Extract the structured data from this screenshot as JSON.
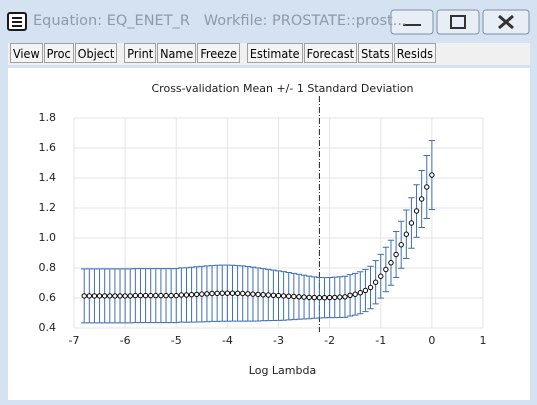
{
  "window": {
    "title": "Equation: EQ_ENET_R   Workfile: PROSTATE::prost...",
    "toolbar": [
      [
        "View",
        "Proc",
        "Object"
      ],
      [
        "Print",
        "Name",
        "Freeze"
      ],
      [
        "Estimate",
        "Forecast",
        "Stats",
        "Resids"
      ]
    ]
  },
  "chart_data": {
    "type": "errorbar",
    "title": "Cross-validation Mean +/- 1 Standard Deviation",
    "x_label": "Log Lambda",
    "x": [
      -6.8,
      -6.7,
      -6.6,
      -6.5,
      -6.4,
      -6.3,
      -6.2,
      -6.1,
      -6.0,
      -5.9,
      -5.8,
      -5.7,
      -5.6,
      -5.5,
      -5.4,
      -5.3,
      -5.2,
      -5.1,
      -5.0,
      -4.9,
      -4.8,
      -4.7,
      -4.6,
      -4.5,
      -4.4,
      -4.3,
      -4.2,
      -4.1,
      -4.0,
      -3.9,
      -3.8,
      -3.7,
      -3.6,
      -3.5,
      -3.4,
      -3.3,
      -3.2,
      -3.1,
      -3.0,
      -2.9,
      -2.8,
      -2.7,
      -2.6,
      -2.5,
      -2.4,
      -2.3,
      -2.2,
      -2.1,
      -2.0,
      -1.9,
      -1.8,
      -1.7,
      -1.6,
      -1.5,
      -1.4,
      -1.3,
      -1.2,
      -1.1,
      -1.0,
      -0.9,
      -0.8,
      -0.7,
      -0.6,
      -0.5,
      -0.4,
      -0.3,
      -0.2,
      -0.1,
      0.0
    ],
    "values": [
      0.614,
      0.614,
      0.614,
      0.614,
      0.614,
      0.614,
      0.614,
      0.614,
      0.614,
      0.614,
      0.616,
      0.616,
      0.616,
      0.616,
      0.616,
      0.616,
      0.616,
      0.616,
      0.616,
      0.62,
      0.62,
      0.622,
      0.624,
      0.626,
      0.628,
      0.63,
      0.631,
      0.632,
      0.632,
      0.632,
      0.631,
      0.63,
      0.628,
      0.626,
      0.624,
      0.622,
      0.62,
      0.618,
      0.616,
      0.614,
      0.612,
      0.61,
      0.608,
      0.606,
      0.604,
      0.603,
      0.602,
      0.602,
      0.603,
      0.604,
      0.606,
      0.608,
      0.618,
      0.625,
      0.635,
      0.65,
      0.67,
      0.705,
      0.745,
      0.79,
      0.835,
      0.89,
      0.955,
      1.025,
      1.1,
      1.18,
      1.26,
      1.34,
      1.42
    ],
    "errors": [
      0.18,
      0.18,
      0.18,
      0.18,
      0.18,
      0.18,
      0.18,
      0.18,
      0.18,
      0.18,
      0.18,
      0.18,
      0.18,
      0.18,
      0.18,
      0.18,
      0.18,
      0.18,
      0.18,
      0.181,
      0.182,
      0.183,
      0.184,
      0.185,
      0.186,
      0.186,
      0.187,
      0.187,
      0.187,
      0.186,
      0.185,
      0.184,
      0.182,
      0.18,
      0.177,
      0.174,
      0.171,
      0.168,
      0.165,
      0.162,
      0.158,
      0.154,
      0.15,
      0.146,
      0.142,
      0.138,
      0.135,
      0.134,
      0.134,
      0.135,
      0.136,
      0.137,
      0.138,
      0.139,
      0.14,
      0.141,
      0.142,
      0.144,
      0.146,
      0.148,
      0.15,
      0.153,
      0.157,
      0.162,
      0.168,
      0.175,
      0.19,
      0.21,
      0.23
    ],
    "bar_color": "#3f6fb4",
    "marker_color": "#000000",
    "vline_x": -2.2,
    "xlim": [
      -7,
      1
    ],
    "xticks": [
      -7,
      -6,
      -5,
      -4,
      -3,
      -2,
      -1,
      0,
      1
    ],
    "ylim": [
      0.4,
      1.8
    ],
    "yticks": [
      0.4,
      0.6,
      0.8,
      {
        "value": 1,
        "label": "1.0"
      },
      1.2,
      1.4,
      1.6,
      1.8
    ],
    "grid": true
  }
}
